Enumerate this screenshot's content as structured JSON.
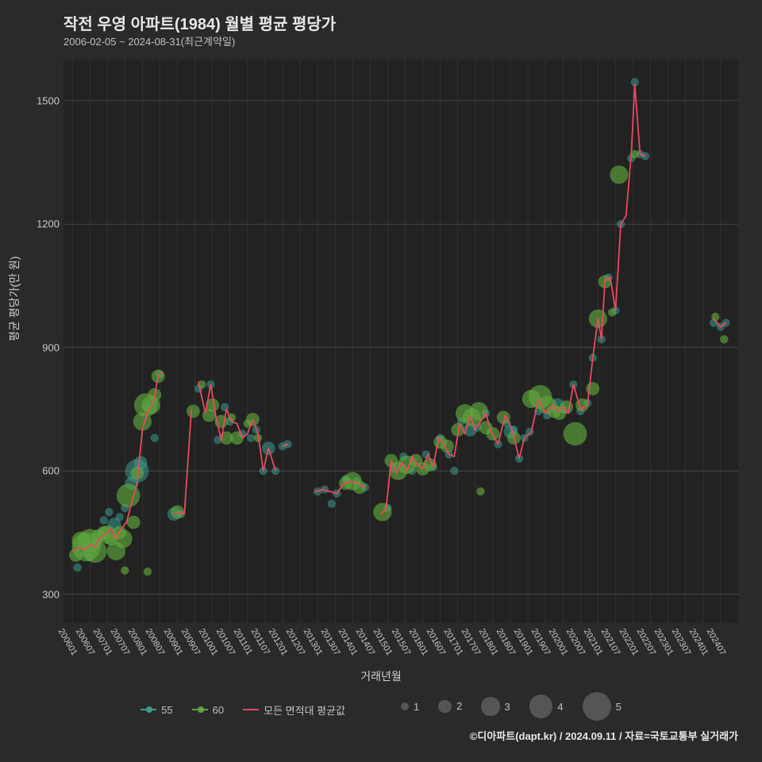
{
  "title": "작전 우영 아파트(1984) 월별 평균 평당가",
  "subtitle": "2006-02-05 ~ 2024-08-31(최근계약일)",
  "ylabel": "평균 평당가(만 원)",
  "xlabel": "거래년월",
  "credit": "©디아파트(dapt.kr) / 2024.09.11 / 자료=국토교통부 실거래가",
  "colors": {
    "background": "#2a2a2a",
    "plot_bg": "#222222",
    "grid": "#555555",
    "text": "#e8e8e8",
    "series55": "#3a9b8f",
    "series60": "#5fa83e",
    "lineAll": "#e84a5f"
  },
  "chart": {
    "type": "line+scatter",
    "x_domain": [
      2005.75,
      2025.0
    ],
    "y_domain": [
      230,
      1600
    ],
    "yticks": [
      300,
      600,
      900,
      1200,
      1500
    ],
    "xticks": [
      "200601",
      "200607",
      "200701",
      "200707",
      "200801",
      "200807",
      "200901",
      "200907",
      "201001",
      "201007",
      "201101",
      "201107",
      "201201",
      "201207",
      "201301",
      "201307",
      "201401",
      "201407",
      "201501",
      "201507",
      "201601",
      "201607",
      "201701",
      "201707",
      "201801",
      "201807",
      "201901",
      "201907",
      "202001",
      "202007",
      "202101",
      "202107",
      "202201",
      "202207",
      "202301",
      "202307",
      "202401",
      "202407"
    ],
    "line": {
      "label": "모든 면적대 평균값",
      "color": "#e84a5f",
      "width": 1.8,
      "segments": [
        [
          [
            2006.05,
            405
          ],
          [
            2006.2,
            415
          ],
          [
            2006.35,
            408
          ],
          [
            2006.5,
            420
          ],
          [
            2006.65,
            415
          ],
          [
            2006.8,
            440
          ],
          [
            2006.95,
            445
          ],
          [
            2007.1,
            460
          ],
          [
            2007.25,
            435
          ],
          [
            2007.4,
            460
          ],
          [
            2007.55,
            475
          ],
          [
            2007.7,
            525
          ],
          [
            2007.85,
            570
          ],
          [
            2008.0,
            700
          ],
          [
            2008.15,
            745
          ],
          [
            2008.3,
            760
          ],
          [
            2008.45,
            830
          ],
          [
            2008.55,
            840
          ]
        ],
        [
          [
            2008.9,
            495
          ],
          [
            2009.05,
            500
          ],
          [
            2009.2,
            495
          ],
          [
            2009.4,
            750
          ]
        ],
        [
          [
            2009.6,
            815
          ],
          [
            2009.8,
            740
          ],
          [
            2009.95,
            810
          ],
          [
            2010.1,
            730
          ],
          [
            2010.25,
            675
          ],
          [
            2010.4,
            750
          ],
          [
            2010.55,
            720
          ],
          [
            2010.7,
            715
          ],
          [
            2010.85,
            680
          ],
          [
            2011.0,
            690
          ],
          [
            2011.15,
            725
          ],
          [
            2011.3,
            690
          ],
          [
            2011.45,
            600
          ],
          [
            2011.6,
            655
          ],
          [
            2011.8,
            600
          ]
        ],
        [
          [
            2012.0,
            660
          ],
          [
            2012.15,
            665
          ]
        ],
        [
          [
            2012.95,
            550
          ],
          [
            2013.15,
            555
          ],
          [
            2013.35,
            550
          ],
          [
            2013.55,
            545
          ],
          [
            2013.75,
            570
          ],
          [
            2013.95,
            575
          ],
          [
            2014.15,
            570
          ],
          [
            2014.35,
            560
          ]
        ],
        [
          [
            2014.8,
            495
          ],
          [
            2014.95,
            505
          ],
          [
            2015.1,
            625
          ],
          [
            2015.25,
            595
          ],
          [
            2015.4,
            620
          ],
          [
            2015.55,
            600
          ],
          [
            2015.7,
            635
          ],
          [
            2015.85,
            615
          ],
          [
            2016.0,
            605
          ],
          [
            2016.15,
            640
          ],
          [
            2016.3,
            610
          ],
          [
            2016.45,
            680
          ],
          [
            2016.6,
            665
          ],
          [
            2016.75,
            640
          ],
          [
            2016.9,
            635
          ],
          [
            2017.05,
            715
          ],
          [
            2017.2,
            690
          ],
          [
            2017.35,
            735
          ],
          [
            2017.5,
            700
          ],
          [
            2017.65,
            720
          ],
          [
            2017.8,
            740
          ],
          [
            2017.95,
            695
          ],
          [
            2018.15,
            665
          ],
          [
            2018.35,
            735
          ],
          [
            2018.55,
            700
          ],
          [
            2018.75,
            630
          ],
          [
            2018.9,
            680
          ],
          [
            2019.1,
            695
          ],
          [
            2019.3,
            775
          ],
          [
            2019.5,
            740
          ],
          [
            2019.7,
            760
          ],
          [
            2019.85,
            745
          ],
          [
            2020.0,
            755
          ],
          [
            2020.15,
            740
          ],
          [
            2020.3,
            810
          ],
          [
            2020.5,
            750
          ],
          [
            2020.7,
            760
          ],
          [
            2020.85,
            875
          ],
          [
            2021.0,
            970
          ],
          [
            2021.1,
            920
          ],
          [
            2021.2,
            1065
          ],
          [
            2021.35,
            1070
          ],
          [
            2021.5,
            990
          ],
          [
            2021.65,
            1200
          ],
          [
            2021.8,
            1220
          ],
          [
            2021.95,
            1370
          ],
          [
            2022.05,
            1540
          ],
          [
            2022.2,
            1370
          ],
          [
            2022.35,
            1365
          ]
        ],
        [
          [
            2024.3,
            970
          ],
          [
            2024.5,
            950
          ],
          [
            2024.65,
            960
          ]
        ]
      ]
    },
    "scatter60": {
      "label": "60",
      "color": "#5fa83e",
      "opacity": 0.65,
      "points": [
        [
          2006.1,
          395,
          2
        ],
        [
          2006.25,
          430,
          3
        ],
        [
          2006.4,
          415,
          5
        ],
        [
          2006.5,
          430,
          4
        ],
        [
          2006.65,
          405,
          4
        ],
        [
          2006.75,
          442,
          2
        ],
        [
          2006.9,
          450,
          2
        ],
        [
          2007.0,
          445,
          3
        ],
        [
          2007.1,
          435,
          2
        ],
        [
          2007.25,
          405,
          3
        ],
        [
          2007.35,
          450,
          2
        ],
        [
          2007.45,
          435,
          3
        ],
        [
          2007.6,
          540,
          4
        ],
        [
          2007.75,
          475,
          2
        ],
        [
          2007.85,
          595,
          2
        ],
        [
          2008.0,
          720,
          3
        ],
        [
          2008.1,
          760,
          4
        ],
        [
          2008.25,
          760,
          3
        ],
        [
          2008.35,
          785,
          2
        ],
        [
          2008.45,
          830,
          2
        ],
        [
          2007.5,
          358,
          1
        ],
        [
          2008.15,
          355,
          1
        ],
        [
          2009.0,
          500,
          2
        ],
        [
          2009.45,
          745,
          2
        ],
        [
          2009.7,
          810,
          1
        ],
        [
          2009.9,
          735,
          2
        ],
        [
          2010.0,
          760,
          2
        ],
        [
          2010.25,
          720,
          2
        ],
        [
          2010.4,
          680,
          2
        ],
        [
          2010.55,
          730,
          1
        ],
        [
          2010.7,
          680,
          2
        ],
        [
          2011.0,
          715,
          1
        ],
        [
          2011.15,
          725,
          2
        ],
        [
          2011.3,
          680,
          1
        ],
        [
          2013.8,
          570,
          2
        ],
        [
          2014.0,
          575,
          3
        ],
        [
          2014.2,
          560,
          2
        ],
        [
          2014.85,
          500,
          3
        ],
        [
          2015.1,
          625,
          2
        ],
        [
          2015.3,
          600,
          3
        ],
        [
          2015.55,
          615,
          3
        ],
        [
          2015.8,
          625,
          2
        ],
        [
          2016.0,
          605,
          2
        ],
        [
          2016.2,
          615,
          2
        ],
        [
          2016.5,
          670,
          2
        ],
        [
          2016.7,
          660,
          2
        ],
        [
          2017.0,
          700,
          2
        ],
        [
          2017.2,
          740,
          3
        ],
        [
          2017.4,
          730,
          3
        ],
        [
          2017.6,
          745,
          3
        ],
        [
          2017.8,
          705,
          2
        ],
        [
          2018.0,
          690,
          2
        ],
        [
          2018.3,
          730,
          2
        ],
        [
          2018.6,
          680,
          2
        ],
        [
          2017.65,
          550,
          1
        ],
        [
          2019.1,
          775,
          3
        ],
        [
          2019.35,
          780,
          4
        ],
        [
          2019.55,
          760,
          3
        ],
        [
          2019.75,
          745,
          2
        ],
        [
          2019.9,
          740,
          2
        ],
        [
          2020.1,
          755,
          2
        ],
        [
          2020.35,
          690,
          4
        ],
        [
          2020.55,
          760,
          2
        ],
        [
          2020.85,
          800,
          2
        ],
        [
          2021.0,
          970,
          3
        ],
        [
          2021.2,
          1060,
          2
        ],
        [
          2021.6,
          1320,
          3
        ],
        [
          2021.4,
          985,
          1
        ],
        [
          2022.05,
          1370,
          1
        ],
        [
          2024.35,
          975,
          1
        ],
        [
          2024.6,
          920,
          1
        ]
      ]
    },
    "scatter55": {
      "label": "55",
      "color": "#3a9b8f",
      "opacity": 0.55,
      "points": [
        [
          2006.15,
          365,
          1
        ],
        [
          2006.35,
          400,
          1
        ],
        [
          2006.5,
          390,
          1
        ],
        [
          2006.7,
          425,
          1
        ],
        [
          2006.9,
          480,
          1
        ],
        [
          2007.05,
          500,
          1
        ],
        [
          2007.2,
          470,
          2
        ],
        [
          2007.35,
          488,
          1
        ],
        [
          2007.5,
          510,
          1
        ],
        [
          2007.7,
          570,
          2
        ],
        [
          2007.85,
          600,
          4
        ],
        [
          2007.95,
          620,
          2
        ],
        [
          2008.15,
          755,
          1
        ],
        [
          2008.35,
          680,
          1
        ],
        [
          2008.5,
          835,
          1
        ],
        [
          2008.9,
          495,
          2
        ],
        [
          2009.1,
          495,
          1
        ],
        [
          2009.6,
          800,
          1
        ],
        [
          2009.95,
          810,
          1
        ],
        [
          2010.15,
          675,
          1
        ],
        [
          2010.35,
          755,
          1
        ],
        [
          2010.5,
          720,
          1
        ],
        [
          2010.85,
          690,
          1
        ],
        [
          2011.1,
          680,
          1
        ],
        [
          2011.25,
          700,
          1
        ],
        [
          2011.45,
          600,
          1
        ],
        [
          2011.6,
          655,
          2
        ],
        [
          2011.8,
          600,
          1
        ],
        [
          2012.0,
          660,
          1
        ],
        [
          2012.15,
          665,
          1
        ],
        [
          2013.0,
          550,
          1
        ],
        [
          2013.2,
          555,
          1
        ],
        [
          2013.4,
          520,
          1
        ],
        [
          2013.55,
          545,
          1
        ],
        [
          2013.8,
          580,
          1
        ],
        [
          2014.1,
          575,
          1
        ],
        [
          2014.35,
          560,
          1
        ],
        [
          2015.0,
          510,
          1
        ],
        [
          2015.2,
          605,
          1
        ],
        [
          2015.45,
          635,
          1
        ],
        [
          2015.7,
          600,
          1
        ],
        [
          2016.1,
          640,
          1
        ],
        [
          2016.3,
          610,
          1
        ],
        [
          2016.5,
          680,
          1
        ],
        [
          2016.75,
          640,
          1
        ],
        [
          2016.9,
          600,
          1
        ],
        [
          2017.1,
          720,
          1
        ],
        [
          2017.35,
          700,
          2
        ],
        [
          2017.55,
          705,
          1
        ],
        [
          2017.8,
          740,
          1
        ],
        [
          2018.15,
          665,
          1
        ],
        [
          2018.4,
          715,
          1
        ],
        [
          2018.6,
          700,
          1
        ],
        [
          2018.75,
          630,
          1
        ],
        [
          2018.9,
          680,
          1
        ],
        [
          2018.5,
          695,
          2
        ],
        [
          2019.05,
          695,
          1
        ],
        [
          2019.3,
          745,
          1
        ],
        [
          2019.55,
          735,
          1
        ],
        [
          2019.85,
          760,
          2
        ],
        [
          2020.0,
          750,
          1
        ],
        [
          2020.3,
          810,
          1
        ],
        [
          2020.5,
          745,
          1
        ],
        [
          2020.7,
          765,
          1
        ],
        [
          2020.85,
          875,
          1
        ],
        [
          2021.1,
          920,
          1
        ],
        [
          2021.3,
          1070,
          1
        ],
        [
          2021.5,
          990,
          1
        ],
        [
          2021.65,
          1200,
          1
        ],
        [
          2021.95,
          1360,
          1
        ],
        [
          2022.05,
          1545,
          1
        ],
        [
          2022.2,
          1370,
          1
        ],
        [
          2022.35,
          1365,
          1
        ],
        [
          2024.3,
          960,
          1
        ],
        [
          2024.5,
          950,
          1
        ],
        [
          2024.65,
          960,
          1
        ]
      ]
    },
    "size_legend": [
      1,
      2,
      3,
      4,
      5
    ]
  },
  "legend": {
    "series": [
      {
        "label": "55",
        "color": "#3a9b8f",
        "type": "line-dot"
      },
      {
        "label": "60",
        "color": "#5fa83e",
        "type": "line-dot"
      },
      {
        "label": "모든 면적대 평균값",
        "color": "#e84a5f",
        "type": "line"
      }
    ]
  }
}
